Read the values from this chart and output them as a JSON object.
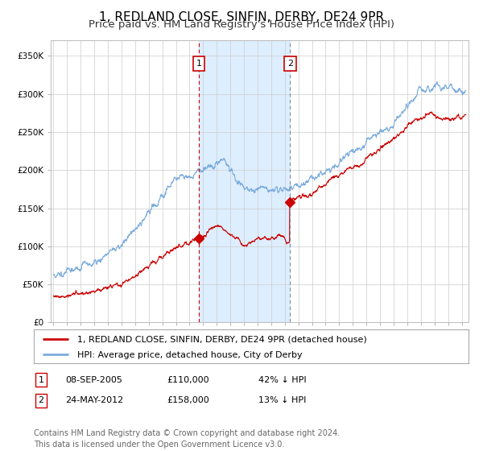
{
  "title": "1, REDLAND CLOSE, SINFIN, DERBY, DE24 9PR",
  "subtitle": "Price paid vs. HM Land Registry's House Price Index (HPI)",
  "legend_label_red": "1, REDLAND CLOSE, SINFIN, DERBY, DE24 9PR (detached house)",
  "legend_label_blue": "HPI: Average price, detached house, City of Derby",
  "transaction1_date": "08-SEP-2005",
  "transaction1_price": 110000,
  "transaction1_label": "42% ↓ HPI",
  "transaction1_year": 2005.69,
  "transaction2_date": "24-MAY-2012",
  "transaction2_price": 158000,
  "transaction2_label": "13% ↓ HPI",
  "transaction2_year": 2012.39,
  "shade_start": 2005.69,
  "shade_end": 2012.39,
  "ylim": [
    0,
    370000
  ],
  "xlim_start": 1994.8,
  "xlim_end": 2025.5,
  "yticks": [
    0,
    50000,
    100000,
    150000,
    200000,
    250000,
    300000,
    350000
  ],
  "ytick_labels": [
    "£0",
    "£50K",
    "£100K",
    "£150K",
    "£200K",
    "£250K",
    "£300K",
    "£350K"
  ],
  "xticks": [
    1995,
    1996,
    1997,
    1998,
    1999,
    2000,
    2001,
    2002,
    2003,
    2004,
    2005,
    2006,
    2007,
    2008,
    2009,
    2010,
    2011,
    2012,
    2013,
    2014,
    2015,
    2016,
    2017,
    2018,
    2019,
    2020,
    2021,
    2022,
    2023,
    2024,
    2025
  ],
  "color_red": "#cc0000",
  "color_blue": "#7aabdc",
  "color_shade": "#ddeeff",
  "footnote": "Contains HM Land Registry data © Crown copyright and database right 2024.\nThis data is licensed under the Open Government Licence v3.0.",
  "title_fontsize": 11,
  "subtitle_fontsize": 9.5,
  "tick_fontsize": 7.5,
  "legend_fontsize": 8,
  "footnote_fontsize": 7
}
